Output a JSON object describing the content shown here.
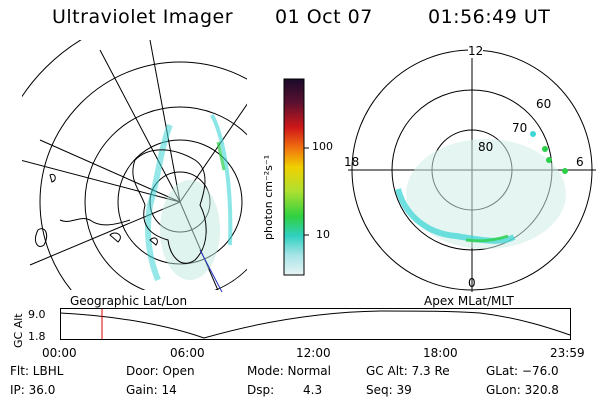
{
  "header": {
    "instrument": "Ultraviolet Imager",
    "date": "01 Oct 07",
    "time": "01:56:49 UT"
  },
  "geo_panel": {
    "caption": "Geographic Lat/Lon"
  },
  "apex_panel": {
    "caption": "Apex MLat/MLT",
    "mlt_labels": {
      "top": "12",
      "left": "18",
      "right": "6",
      "bottom": "0"
    },
    "lat_labels": [
      "60",
      "70",
      "80"
    ]
  },
  "colorbar": {
    "unit_label": "photon cm⁻²s⁻¹",
    "ticks": [
      "100",
      "10"
    ]
  },
  "alt_plot": {
    "ylabel": "GC Alt",
    "yticks": [
      "9.0",
      "1.8"
    ],
    "xticks": [
      "00:00",
      "06:00",
      "12:00",
      "18:00",
      "23:59"
    ],
    "marker_time": "01:56",
    "marker_color": "#e00000"
  },
  "status": {
    "filter": "Flt: LBHL",
    "door": "Door: Open",
    "mode": "Mode: Normal",
    "gc_alt": "GC Alt: 7.3 Re",
    "glat": "GLat: −76.0",
    "ip": "IP: 36.0",
    "gain": "Gain: 14",
    "dsp_label": "Dsp:",
    "dsp_value": "4.3",
    "seq": "Seq: 39",
    "glon": "GLon: 320.8"
  },
  "colors": {
    "aurora_cyan": "#3fd6d6",
    "aurora_green": "#2ccf4a",
    "coast": "#000000"
  }
}
